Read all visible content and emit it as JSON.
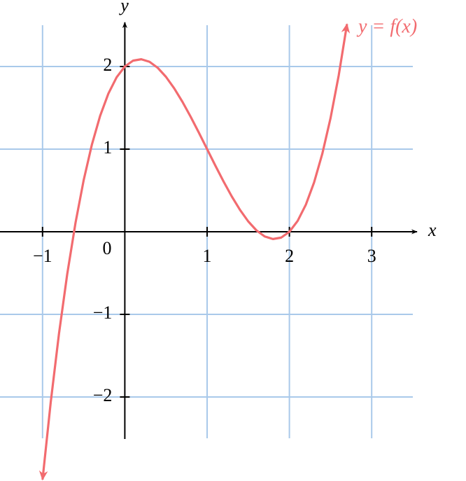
{
  "chart_data": {
    "type": "line",
    "x_label": "x",
    "y_label": "y",
    "origin_label": "0",
    "x": [
      -1.0,
      -0.9,
      -0.8,
      -0.7,
      -0.6,
      -0.5,
      -0.4,
      -0.3,
      -0.2,
      -0.1,
      0,
      0.1,
      0.2,
      0.3,
      0.4,
      0.5,
      0.6,
      0.7,
      0.8,
      0.9,
      1.0,
      1.1,
      1.2,
      1.3,
      1.4,
      1.5,
      1.6,
      1.7,
      1.8,
      1.9,
      2.0,
      2.1,
      2.2,
      2.3,
      2.4,
      2.5,
      2.6,
      2.7
    ],
    "series": [
      {
        "name": "y = f(x)",
        "color": "#f26b6f",
        "values": [
          -3,
          -2.059,
          -1.232,
          -0.513,
          0.104,
          0.625,
          1.056,
          1.403,
          1.672,
          1.869,
          2,
          2.071,
          2.088,
          2.057,
          1.984,
          1.875,
          1.736,
          1.573,
          1.392,
          1.199,
          1,
          0.801,
          0.608,
          0.427,
          0.264,
          0.125,
          0.016,
          -0.057,
          -0.088,
          -0.071,
          0,
          0.131,
          0.328,
          0.597,
          0.944,
          1.375,
          1.896,
          2.513
        ]
      }
    ],
    "xlim": [
      -1.5,
      3.5
    ],
    "ylim": [
      -2.5,
      2.5
    ],
    "xticks": [
      {
        "value": -1,
        "label": "−1"
      },
      1,
      2,
      3
    ],
    "yticks": [
      {
        "value": -2,
        "label": "−2"
      },
      {
        "value": -1,
        "label": "−1"
      },
      1,
      2
    ],
    "grid": true,
    "grid_color": "#a9c9ea"
  }
}
